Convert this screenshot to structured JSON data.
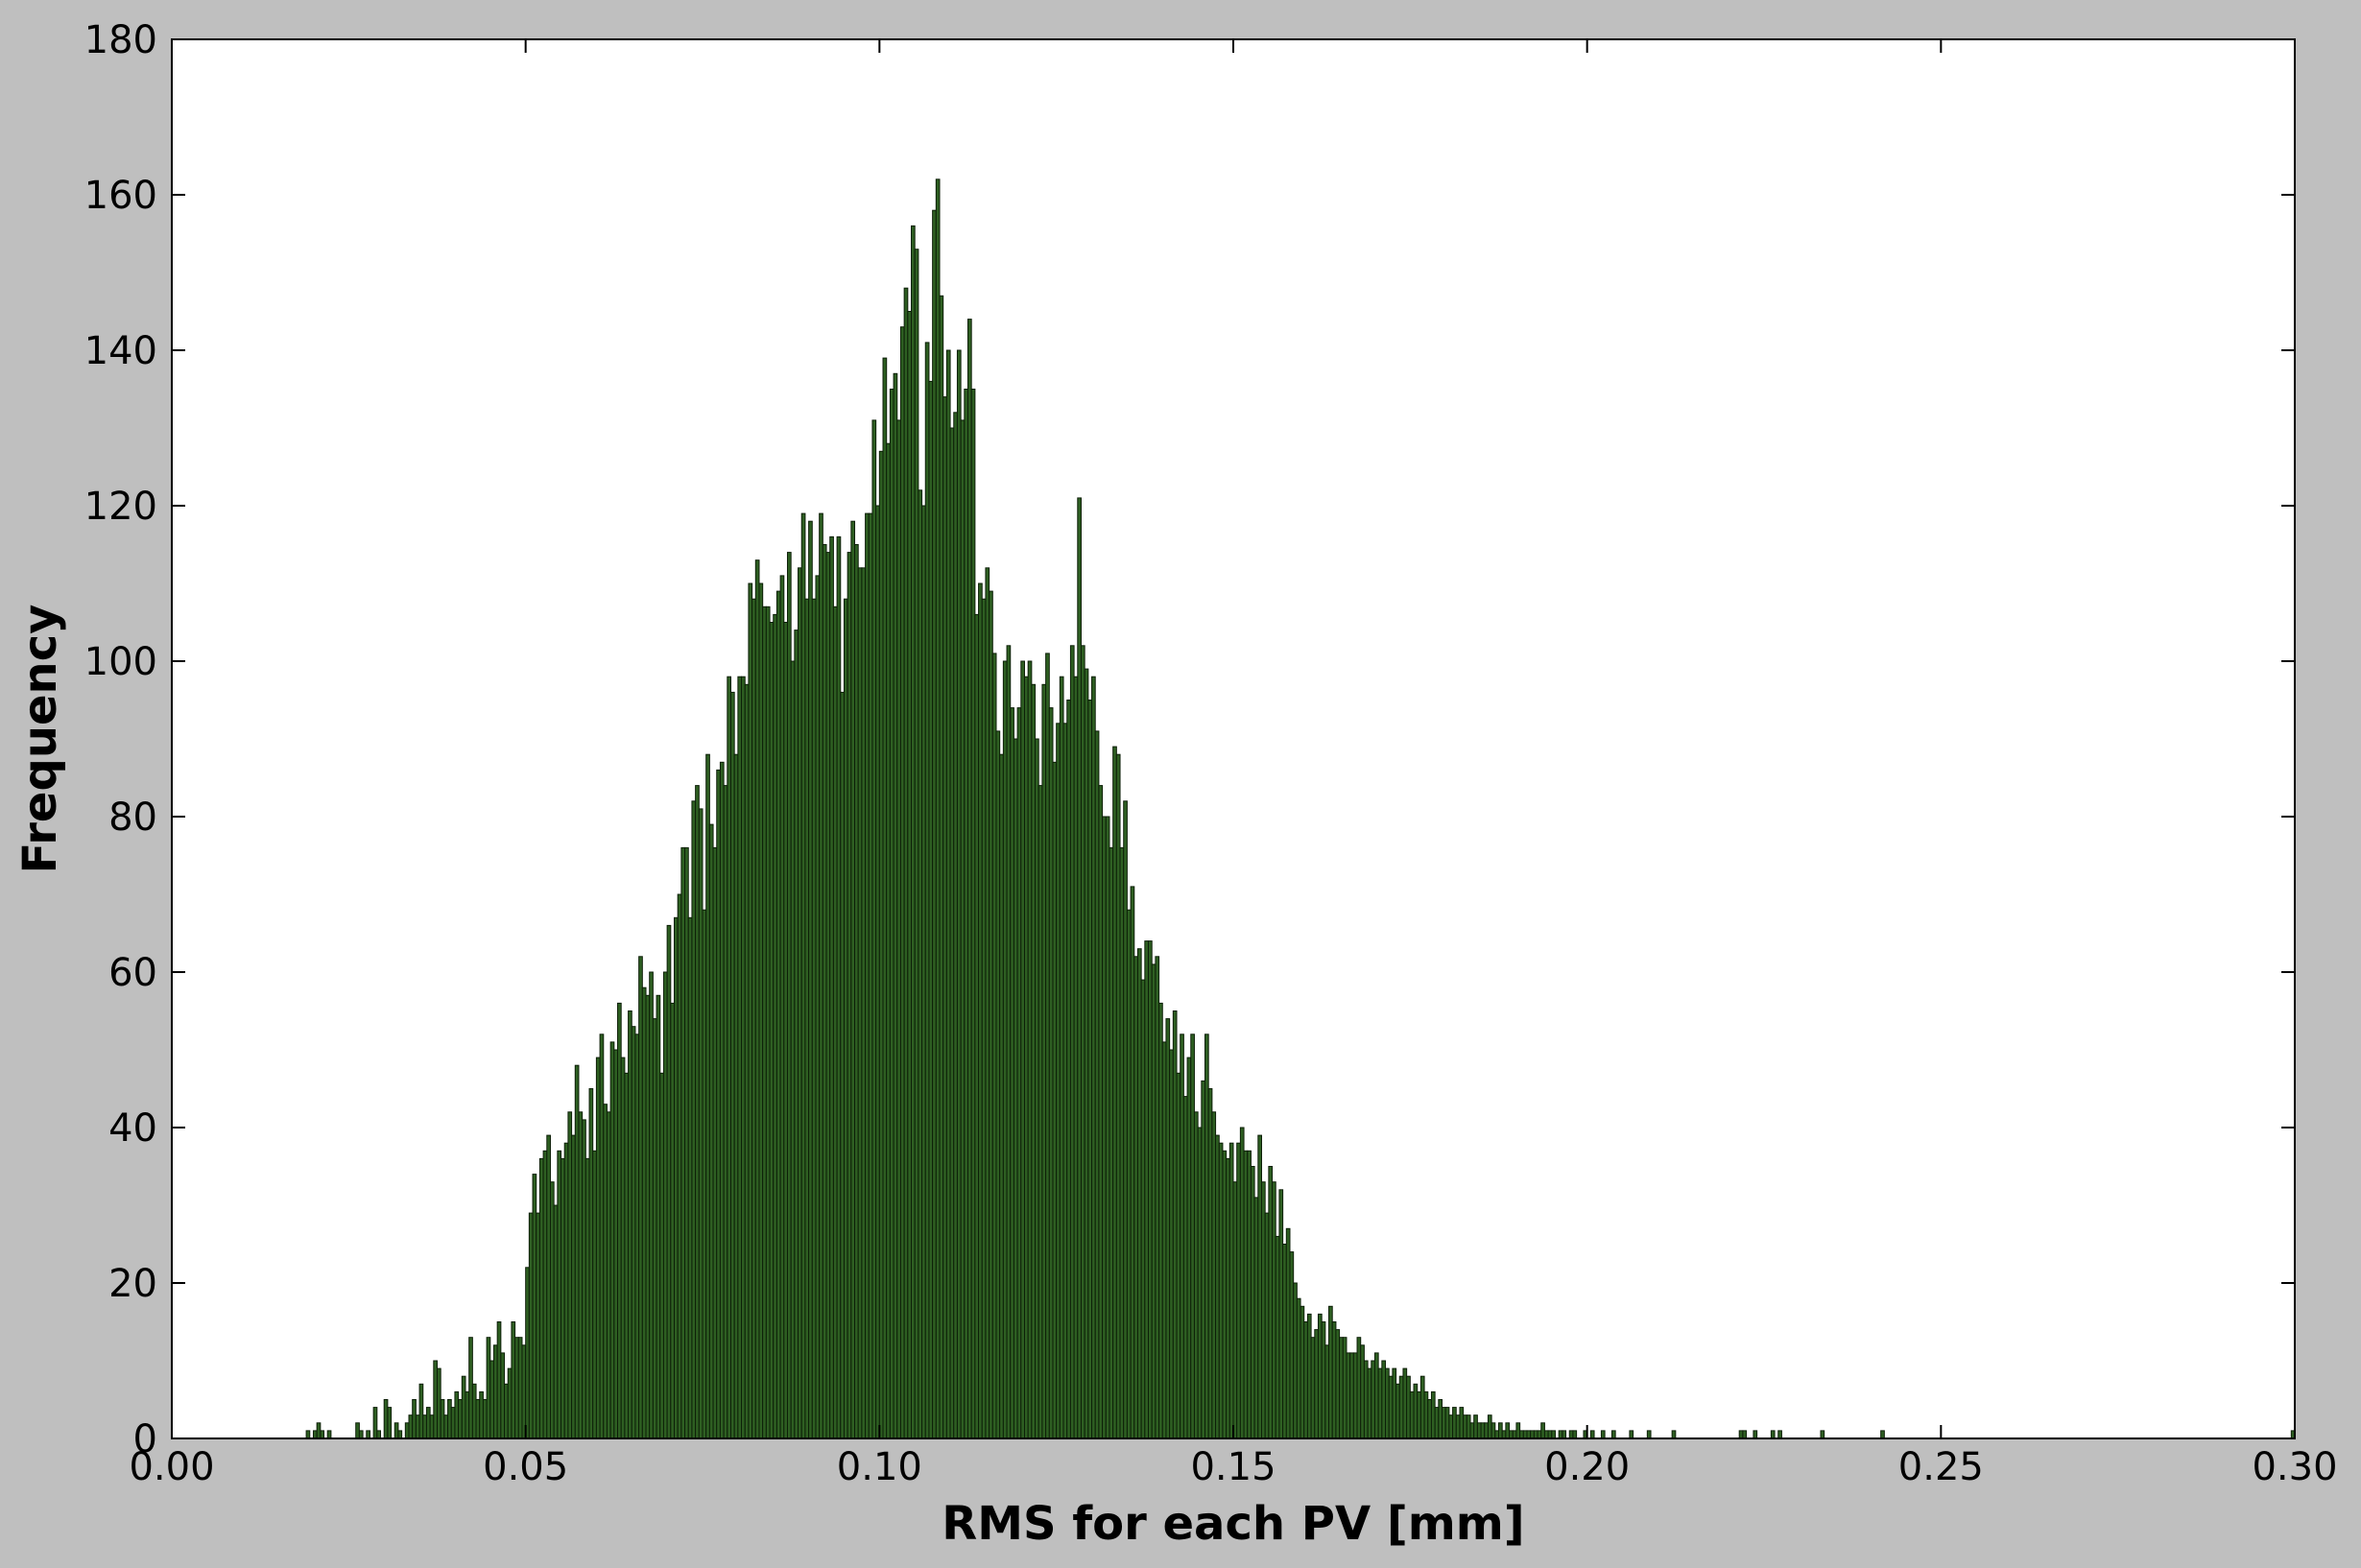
{
  "chart_data": {
    "type": "bar",
    "title": "",
    "xlabel": "RMS for each PV [mm]",
    "ylabel": "Frequency",
    "xlim": [
      0.0,
      0.3
    ],
    "ylim": [
      0,
      180
    ],
    "x_ticks": [
      "0.00",
      "0.05",
      "0.10",
      "0.15",
      "0.20",
      "0.25",
      "0.30"
    ],
    "y_ticks": [
      "0",
      "20",
      "40",
      "60",
      "80",
      "100",
      "120",
      "140",
      "160",
      "180"
    ],
    "grid": false,
    "legend": "none",
    "bar_color": "#2e5f22",
    "bar_edge_color": "#0d1f08",
    "figure_background": "#bfbfbf",
    "plot_background": "#ffffff",
    "bin_width": 0.0005,
    "bin_start": 0.0,
    "values": [
      0,
      0,
      0,
      0,
      0,
      0,
      0,
      0,
      0,
      0,
      0,
      0,
      0,
      0,
      0,
      0,
      0,
      0,
      0,
      0,
      0,
      0,
      0,
      0,
      0,
      0,
      0,
      0,
      0,
      0,
      0,
      0,
      0,
      0,
      0,
      0,
      0,
      0,
      1,
      0,
      1,
      2,
      1,
      0,
      1,
      0,
      0,
      0,
      0,
      0,
      0,
      0,
      2,
      1,
      0,
      1,
      0,
      4,
      1,
      0,
      5,
      4,
      0,
      2,
      1,
      0,
      2,
      3,
      5,
      3,
      7,
      3,
      4,
      3,
      10,
      9,
      5,
      3,
      5,
      4,
      6,
      5,
      8,
      6,
      13,
      7,
      5,
      6,
      5,
      13,
      10,
      12,
      15,
      11,
      7,
      9,
      15,
      13,
      13,
      12,
      22,
      29,
      34,
      29,
      36,
      37,
      39,
      33,
      30,
      37,
      36,
      38,
      42,
      39,
      48,
      42,
      41,
      36,
      45,
      37,
      49,
      52,
      43,
      42,
      51,
      50,
      56,
      49,
      47,
      55,
      53,
      52,
      62,
      58,
      57,
      60,
      54,
      57,
      47,
      60,
      66,
      56,
      67,
      70,
      76,
      76,
      67,
      82,
      84,
      81,
      68,
      88,
      79,
      76,
      86,
      87,
      84,
      98,
      96,
      88,
      98,
      98,
      97,
      110,
      108,
      113,
      110,
      107,
      107,
      105,
      106,
      109,
      111,
      105,
      114,
      100,
      104,
      112,
      119,
      108,
      118,
      108,
      111,
      119,
      115,
      114,
      116,
      107,
      116,
      96,
      108,
      114,
      118,
      115,
      112,
      112,
      119,
      119,
      131,
      120,
      127,
      139,
      128,
      135,
      137,
      131,
      143,
      148,
      145,
      156,
      153,
      122,
      120,
      141,
      136,
      158,
      162,
      147,
      134,
      140,
      130,
      132,
      140,
      131,
      135,
      144,
      135,
      106,
      110,
      108,
      112,
      109,
      101,
      91,
      88,
      100,
      102,
      94,
      90,
      94,
      100,
      98,
      100,
      97,
      90,
      84,
      97,
      101,
      94,
      87,
      92,
      98,
      92,
      95,
      102,
      98,
      121,
      102,
      99,
      95,
      98,
      91,
      84,
      80,
      80,
      76,
      89,
      88,
      76,
      82,
      68,
      71,
      62,
      63,
      59,
      64,
      64,
      61,
      62,
      56,
      51,
      54,
      50,
      55,
      47,
      52,
      44,
      49,
      52,
      42,
      40,
      46,
      52,
      45,
      42,
      39,
      38,
      37,
      36,
      38,
      33,
      38,
      40,
      37,
      37,
      35,
      31,
      39,
      33,
      29,
      35,
      33,
      26,
      32,
      25,
      27,
      24,
      20,
      18,
      17,
      15,
      16,
      13,
      14,
      16,
      15,
      12,
      17,
      15,
      14,
      13,
      13,
      11,
      11,
      11,
      13,
      12,
      10,
      9,
      10,
      11,
      9,
      10,
      9,
      8,
      9,
      7,
      8,
      9,
      8,
      6,
      7,
      6,
      8,
      6,
      5,
      6,
      4,
      5,
      4,
      4,
      3,
      4,
      3,
      4,
      3,
      3,
      2,
      3,
      2,
      2,
      2,
      3,
      2,
      1,
      2,
      1,
      2,
      1,
      1,
      2,
      1,
      1,
      1,
      1,
      1,
      1,
      2,
      1,
      1,
      1,
      0,
      1,
      1,
      0,
      1,
      1,
      0,
      0,
      1,
      0,
      1,
      0,
      0,
      1,
      0,
      0,
      1,
      0,
      0,
      0,
      0,
      1,
      0,
      0,
      0,
      0,
      1,
      0,
      0,
      0,
      0,
      0,
      0,
      1,
      0,
      0,
      0,
      0,
      0,
      0,
      0,
      0,
      0,
      0,
      0,
      0,
      0,
      0,
      0,
      0,
      0,
      0,
      1,
      1,
      0,
      0,
      1,
      0,
      0,
      0,
      0,
      1,
      0,
      1,
      0,
      0,
      0,
      0,
      0,
      0,
      0,
      0,
      0,
      0,
      0,
      1,
      0,
      0,
      0,
      0,
      0,
      0,
      0,
      0,
      0,
      0,
      0,
      0,
      0,
      0,
      0,
      0,
      1,
      0,
      0,
      0,
      0,
      0,
      0,
      0,
      0,
      0,
      0,
      0,
      0,
      0,
      0,
      0,
      0,
      0,
      0,
      0,
      0,
      0,
      0,
      0,
      0,
      0,
      0,
      0,
      0,
      0,
      0,
      0,
      0,
      0,
      0,
      0,
      0,
      0,
      0,
      0,
      0,
      0,
      0,
      0,
      0,
      0,
      0,
      0,
      0,
      0,
      0,
      0,
      0,
      0,
      0,
      0,
      0,
      0,
      0,
      0,
      0,
      0,
      0,
      0,
      0,
      0,
      0,
      0,
      0,
      0,
      0,
      0,
      0,
      0,
      0,
      0,
      0,
      0,
      0,
      0,
      0,
      0,
      0,
      0,
      0,
      0,
      0,
      0,
      0,
      0,
      0,
      0,
      0,
      0,
      0,
      0,
      0,
      0,
      0,
      0,
      0,
      0,
      0,
      0,
      0,
      0,
      0,
      0,
      0,
      0,
      0,
      0,
      0,
      0,
      0,
      0,
      1
    ]
  }
}
